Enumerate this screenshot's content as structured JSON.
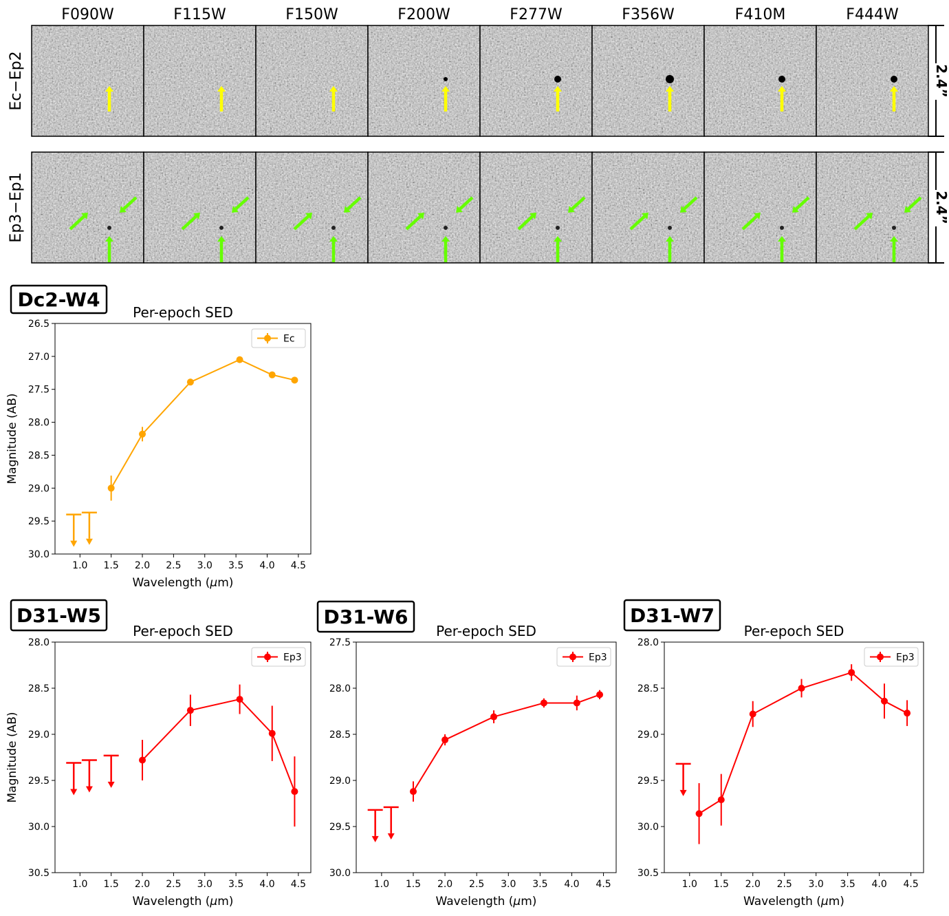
{
  "filters": [
    "F090W",
    "F115W",
    "F150W",
    "F200W",
    "F277W",
    "F356W",
    "F410M",
    "F444W"
  ],
  "rows": [
    {
      "label": "Ec−Ep2",
      "scale": "2.4”"
    },
    {
      "label": "Ep3−Ep1",
      "scale": "2.4”"
    }
  ],
  "colors": {
    "ec": "#ffa500",
    "ep3": "#ff0000",
    "yellow_arrow": "#ffff00",
    "green_arrow": "#66ff00"
  },
  "chart_data": [
    {
      "type": "line",
      "id": "dc2w4",
      "badge": "Dc2-W4",
      "title": "Per-epoch SED",
      "xlabel": "Wavelength (μm)",
      "ylabel": "Magnitude (AB)",
      "xlim": [
        0.6,
        4.7
      ],
      "ylim": [
        30.0,
        26.5
      ],
      "xticks": [
        "1.0",
        "1.5",
        "2.0",
        "2.5",
        "3.0",
        "3.5",
        "4.0",
        "4.5"
      ],
      "yticks": [
        "26.5",
        "27.0",
        "27.5",
        "28.0",
        "28.5",
        "29.0",
        "29.5",
        "30.0"
      ],
      "legend": "Ec",
      "color": "#ffa500",
      "points": [
        {
          "x": 1.5,
          "y": 29.0,
          "err": 0.19
        },
        {
          "x": 2.0,
          "y": 28.18,
          "err": 0.11
        },
        {
          "x": 2.77,
          "y": 27.39,
          "err": 0.05
        },
        {
          "x": 3.56,
          "y": 27.05,
          "err": 0.02
        },
        {
          "x": 4.08,
          "y": 27.28,
          "err": 0.03
        },
        {
          "x": 4.44,
          "y": 27.36,
          "err": 0.03
        }
      ],
      "upper_limits": [
        {
          "x": 0.9,
          "y": 29.4
        },
        {
          "x": 1.15,
          "y": 29.37
        }
      ]
    },
    {
      "type": "line",
      "id": "d31w5",
      "badge": "D31-W5",
      "title": "Per-epoch SED",
      "xlabel": "Wavelength (μm)",
      "ylabel": "Magnitude (AB)",
      "xlim": [
        0.6,
        4.7
      ],
      "ylim": [
        30.5,
        28.0
      ],
      "xticks": [
        "1.0",
        "1.5",
        "2.0",
        "2.5",
        "3.0",
        "3.5",
        "4.0",
        "4.5"
      ],
      "yticks": [
        "28.0",
        "28.5",
        "29.0",
        "29.5",
        "30.0",
        "30.5"
      ],
      "legend": "Ep3",
      "color": "#ff0000",
      "points": [
        {
          "x": 2.0,
          "y": 29.28,
          "err": 0.22
        },
        {
          "x": 2.77,
          "y": 28.74,
          "err": 0.17
        },
        {
          "x": 3.56,
          "y": 28.62,
          "err": 0.16
        },
        {
          "x": 4.08,
          "y": 28.99,
          "err": 0.3
        },
        {
          "x": 4.44,
          "y": 29.62,
          "err": 0.38
        }
      ],
      "upper_limits": [
        {
          "x": 0.9,
          "y": 29.31
        },
        {
          "x": 1.15,
          "y": 29.28
        },
        {
          "x": 1.5,
          "y": 29.23
        }
      ]
    },
    {
      "type": "line",
      "id": "d31w6",
      "badge": "D31-W6",
      "title": "Per-epoch SED",
      "xlabel": "Wavelength (μm)",
      "ylabel": "",
      "xlim": [
        0.6,
        4.7
      ],
      "ylim": [
        30.0,
        27.5
      ],
      "xticks": [
        "1.0",
        "1.5",
        "2.0",
        "2.5",
        "3.0",
        "3.5",
        "4.0",
        "4.5"
      ],
      "yticks": [
        "27.5",
        "28.0",
        "28.5",
        "29.0",
        "29.5",
        "30.0"
      ],
      "legend": "Ep3",
      "color": "#ff0000",
      "points": [
        {
          "x": 1.5,
          "y": 29.12,
          "err": 0.11
        },
        {
          "x": 2.0,
          "y": 28.56,
          "err": 0.06
        },
        {
          "x": 2.77,
          "y": 28.31,
          "err": 0.07
        },
        {
          "x": 3.56,
          "y": 28.16,
          "err": 0.05
        },
        {
          "x": 4.08,
          "y": 28.16,
          "err": 0.08
        },
        {
          "x": 4.44,
          "y": 28.07,
          "err": 0.05
        }
      ],
      "upper_limits": [
        {
          "x": 0.9,
          "y": 29.32
        },
        {
          "x": 1.15,
          "y": 29.29
        }
      ]
    },
    {
      "type": "line",
      "id": "d31w7",
      "badge": "D31-W7",
      "title": "Per-epoch SED",
      "xlabel": "Wavelength (μm)",
      "ylabel": "",
      "xlim": [
        0.6,
        4.7
      ],
      "ylim": [
        30.5,
        28.0
      ],
      "xticks": [
        "1.0",
        "1.5",
        "2.0",
        "2.5",
        "3.0",
        "3.5",
        "4.0",
        "4.5"
      ],
      "yticks": [
        "28.0",
        "28.5",
        "29.0",
        "29.5",
        "30.0",
        "30.5"
      ],
      "legend": "Ep3",
      "color": "#ff0000",
      "points": [
        {
          "x": 1.15,
          "y": 29.86,
          "err": 0.33
        },
        {
          "x": 1.5,
          "y": 29.71,
          "err": 0.28
        },
        {
          "x": 2.0,
          "y": 28.78,
          "err": 0.14
        },
        {
          "x": 2.77,
          "y": 28.5,
          "err": 0.1
        },
        {
          "x": 3.56,
          "y": 28.33,
          "err": 0.09
        },
        {
          "x": 4.08,
          "y": 28.64,
          "err": 0.19
        },
        {
          "x": 4.44,
          "y": 28.77,
          "err": 0.14
        }
      ],
      "upper_limits": [
        {
          "x": 0.9,
          "y": 29.32
        }
      ]
    }
  ]
}
